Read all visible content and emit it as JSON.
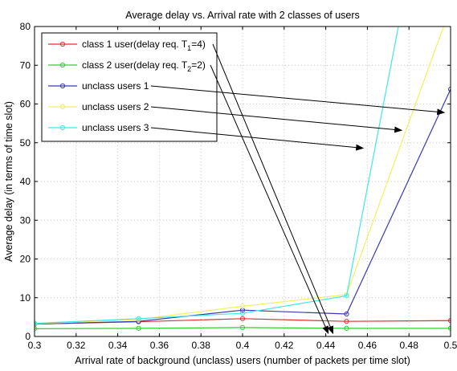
{
  "chart_data": {
    "type": "line",
    "title": "Average delay vs. Arrival rate with 2 classes of users",
    "xlabel": "Arrival rate of background (unclass) users (number of packets per time slot)",
    "ylabel": "Average delay (in terms of time slot)",
    "xlim": [
      0.3,
      0.5
    ],
    "ylim": [
      0,
      80
    ],
    "xticks": [
      0.3,
      0.32,
      0.34,
      0.36,
      0.38,
      0.4,
      0.42,
      0.44,
      0.46,
      0.48,
      0.5
    ],
    "xtick_labels": [
      "0.3",
      "0.32",
      "0.34",
      "0.36",
      "0.38",
      "0.4",
      "0.42",
      "0.44",
      "0.46",
      "0.48",
      "0.5"
    ],
    "yticks": [
      0,
      10,
      20,
      30,
      40,
      50,
      60,
      70,
      80
    ],
    "ytick_labels": [
      "0",
      "10",
      "20",
      "30",
      "40",
      "50",
      "60",
      "70",
      "80"
    ],
    "grid": true,
    "legend_position": "top-left",
    "x": [
      0.3,
      0.35,
      0.4,
      0.45,
      0.5
    ],
    "series": [
      {
        "name": "class 1 user(delay req. T1=4)",
        "legend_main": "class 1 user(delay req. T",
        "legend_sub": "1",
        "legend_tail": "=4)",
        "color": "#e03030",
        "values": [
          3.2,
          3.8,
          4.6,
          3.9,
          4.1
        ]
      },
      {
        "name": "class 2 user(delay req. T2=2)",
        "legend_main": "class 2 user(delay req. T",
        "legend_sub": "2",
        "legend_tail": "=2)",
        "color": "#30d030",
        "values": [
          2.0,
          2.1,
          2.3,
          2.1,
          2.1
        ]
      },
      {
        "name": "unclass users 1",
        "legend_main": "unclass users 1",
        "legend_sub": "",
        "legend_tail": "",
        "color": "#3a3ab0",
        "values": [
          3.2,
          3.9,
          6.8,
          5.8,
          63.8
        ]
      },
      {
        "name": "unclass users 2",
        "legend_main": "unclass users 2",
        "legend_sub": "",
        "legend_tail": "",
        "color": "#f2f060",
        "values": [
          3.3,
          4.4,
          7.8,
          10.8,
          85
        ]
      },
      {
        "name": "unclass users 3",
        "legend_main": "unclass users 3",
        "legend_sub": "",
        "legend_tail": "",
        "color": "#40e8e8",
        "values": [
          3.4,
          4.6,
          6.0,
          10.5,
          150
        ]
      }
    ],
    "annotations": [
      {
        "from_series": 0,
        "to": [
          0.4435,
          0.8
        ]
      },
      {
        "from_series": 1,
        "to": [
          0.4412,
          0.8
        ]
      },
      {
        "from_series": 2,
        "to": [
          0.497,
          57.8
        ]
      },
      {
        "from_series": 3,
        "to": [
          0.4765,
          53.2
        ]
      },
      {
        "from_series": 4,
        "to": [
          0.458,
          48.6
        ]
      }
    ]
  }
}
